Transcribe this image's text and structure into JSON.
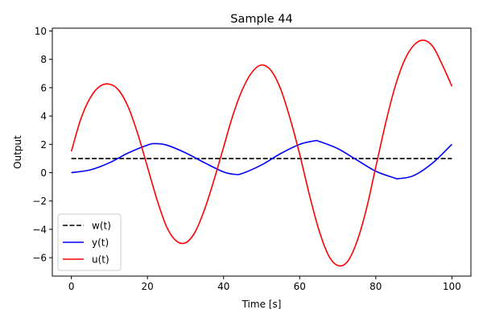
{
  "chart_data": {
    "type": "line",
    "title": "Sample 44",
    "xlabel": "Time [s]",
    "ylabel": "Output",
    "xlim": [
      -5,
      105
    ],
    "ylim": [
      -7.3,
      10.2
    ],
    "xticks": [
      0,
      20,
      40,
      60,
      80,
      100
    ],
    "xtick_labels": [
      "0",
      "20",
      "40",
      "60",
      "80",
      "100"
    ],
    "yticks": [
      -6,
      -4,
      -2,
      0,
      2,
      4,
      6,
      8,
      10
    ],
    "ytick_labels": [
      "−6",
      "−4",
      "−2",
      "0",
      "2",
      "4",
      "6",
      "8",
      "10"
    ],
    "grid": false,
    "legend_position": "lower-left",
    "series": [
      {
        "name": "w(t)",
        "color": "#000000",
        "style": "dashed",
        "x": [
          0,
          100
        ],
        "y": [
          1,
          1
        ]
      },
      {
        "name": "y(t)",
        "color": "#0000ff",
        "style": "solid",
        "x": [
          0,
          5,
          10,
          15,
          20,
          22,
          25,
          30,
          35,
          40,
          43,
          45,
          50,
          55,
          60,
          64,
          65,
          70,
          75,
          80,
          85,
          86,
          90,
          95,
          100
        ],
        "y": [
          0.0,
          0.2,
          0.7,
          1.4,
          1.95,
          2.05,
          1.95,
          1.4,
          0.7,
          0.05,
          -0.12,
          -0.05,
          0.55,
          1.35,
          2.0,
          2.25,
          2.22,
          1.7,
          0.9,
          0.1,
          -0.38,
          -0.42,
          -0.2,
          0.7,
          2.0
        ]
      },
      {
        "name": "u(t)",
        "color": "#ff0000",
        "style": "solid",
        "x": [
          0,
          2.5,
          5,
          7.5,
          10,
          12.5,
          15,
          17.5,
          20,
          22.5,
          25,
          27.5,
          30,
          32.5,
          35,
          37.5,
          40,
          42.5,
          45,
          47.5,
          50,
          52.5,
          55,
          57.5,
          60,
          62.5,
          65,
          67.5,
          70,
          72.5,
          75,
          77.5,
          80,
          82.5,
          85,
          87.5,
          90,
          92.5,
          95,
          97.5,
          100
        ],
        "y": [
          1.5,
          3.8,
          5.3,
          6.1,
          6.25,
          5.8,
          4.6,
          2.7,
          0.4,
          -1.9,
          -3.8,
          -4.8,
          -4.95,
          -4.2,
          -2.6,
          -0.5,
          1.8,
          4.1,
          5.9,
          7.1,
          7.6,
          7.2,
          5.9,
          3.8,
          1.3,
          -1.5,
          -4.0,
          -5.8,
          -6.55,
          -6.3,
          -4.9,
          -2.6,
          0.4,
          3.4,
          6.0,
          7.9,
          9.0,
          9.35,
          8.9,
          7.6,
          6.1
        ]
      }
    ]
  }
}
